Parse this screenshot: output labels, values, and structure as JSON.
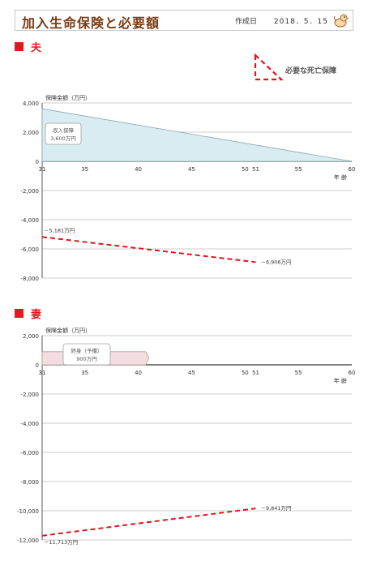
{
  "header": {
    "title": "加入生命保険と必要額",
    "date_label": "作成日",
    "date": "2018．5．15",
    "logo_icon": "bird-mascot-icon"
  },
  "legend": {
    "label": "必要な死亡保障"
  },
  "colors": {
    "accent": "#e0191e",
    "coverage_fill": "#d9ecf2",
    "pension_fill": "#f2dede",
    "dash": "#d9181e"
  },
  "chart_data": [
    {
      "type": "area",
      "section_label": "夫",
      "ylabel": "保険金額（万円）",
      "xlabel": "年 齢",
      "ylim": [
        -8000,
        4000
      ],
      "yticks": [
        4000,
        2000,
        0,
        -2000,
        -4000,
        -6000,
        -8000
      ],
      "ytick_labels": [
        "4,000",
        "2,000",
        "0",
        "-2,000",
        "-4,000",
        "-6,000",
        "-8,000"
      ],
      "xlim": [
        31,
        60
      ],
      "xticks": [
        31,
        35,
        40,
        45,
        50,
        51,
        55,
        60
      ],
      "xtick_labels": [
        "31",
        "35",
        "40",
        "45",
        "50",
        "51",
        "55",
        "60"
      ],
      "coverage": {
        "name": "収入保障",
        "value_label": "3,600万円",
        "x": [
          31,
          60
        ],
        "y": [
          3600,
          0
        ]
      },
      "required": {
        "x": [
          31,
          51
        ],
        "y": [
          -5181,
          -6906
        ],
        "start_label": "－5,181万円",
        "end_label": "－6,906万円"
      }
    },
    {
      "type": "area",
      "section_label": "妻",
      "ylabel": "保険金額（万円）",
      "xlabel": "年 齢",
      "ylim": [
        -12000,
        2000
      ],
      "yticks": [
        2000,
        0,
        -2000,
        -4000,
        -6000,
        -8000,
        -10000,
        -12000
      ],
      "ytick_labels": [
        "2,000",
        "0",
        "-2,000",
        "-4,000",
        "-6,000",
        "-8,000",
        "-10,000",
        "-12,000"
      ],
      "xlim": [
        31,
        60
      ],
      "xticks": [
        31,
        35,
        40,
        45,
        50,
        51,
        55,
        60
      ],
      "xtick_labels": [
        "31",
        "35",
        "40",
        "45",
        "50",
        "51",
        "55",
        "60"
      ],
      "coverage": {
        "name": "終身（予備）",
        "value_label": "900万円",
        "x": [
          31,
          41
        ],
        "y": [
          900,
          900
        ]
      },
      "required": {
        "x": [
          31,
          51
        ],
        "y": [
          -11713,
          -9841
        ],
        "start_label": "－11,713万円",
        "end_label": "－9,841万円"
      }
    }
  ]
}
